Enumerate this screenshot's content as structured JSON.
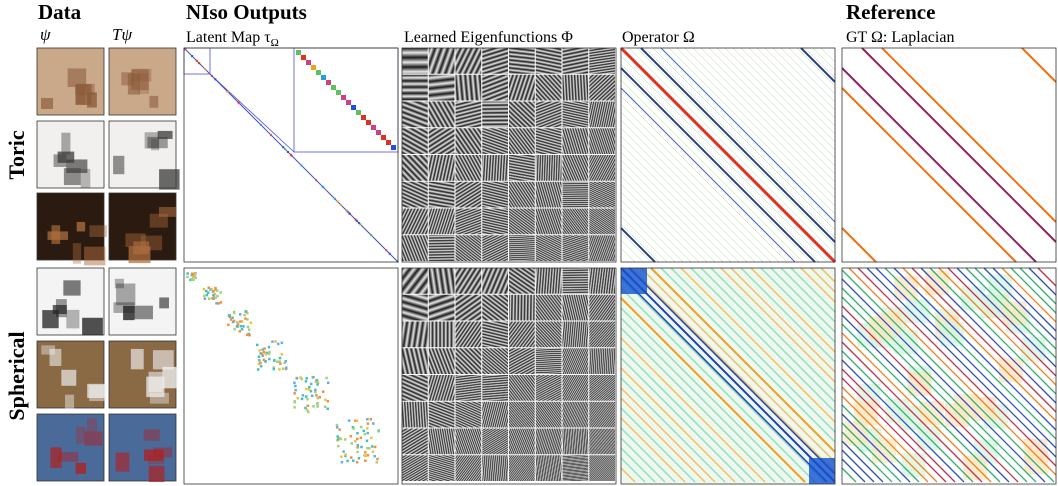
{
  "header": {
    "data_title": "Data",
    "psi": "ψ",
    "t_psi": "Tψ",
    "niso_title": "NIso Outputs",
    "reference_title": "Reference"
  },
  "columns": [
    "Latent Map τ",
    "Learned Eigenfunctions Φ",
    "Operator Ω",
    "GT Ω: Laplacian"
  ],
  "latent_subscript": "Ω",
  "rows": [
    "Toric",
    "Spherical"
  ]
}
